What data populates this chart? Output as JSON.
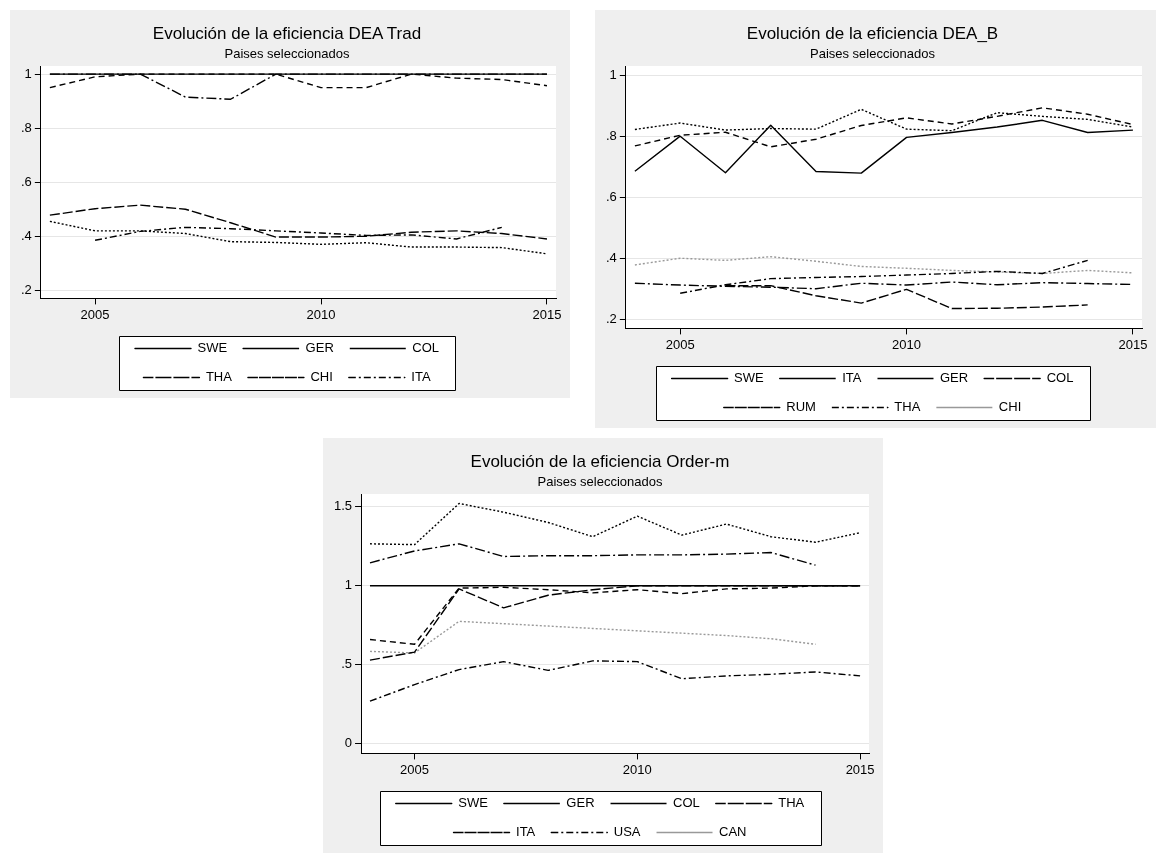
{
  "chart_data": [
    {
      "type": "line",
      "title": "Evolución de la eficiencia DEA Trad",
      "subtitle": "Paises seleccionados",
      "x": [
        2004,
        2005,
        2006,
        2007,
        2008,
        2009,
        2010,
        2011,
        2012,
        2013,
        2014,
        2015
      ],
      "xlim": [
        2003.8,
        2015.2
      ],
      "xticks": [
        2005,
        2010,
        2015
      ],
      "ylim": [
        0.17,
        1.03
      ],
      "yticks": [
        {
          "value": 0.2,
          "label": ".2"
        },
        {
          "value": 0.4,
          "label": ".4"
        },
        {
          "value": 0.6,
          "label": ".6"
        },
        {
          "value": 0.8,
          "label": ".8"
        },
        {
          "value": 1,
          "label": "1"
        }
      ],
      "grid": "y",
      "legend": "bottom",
      "series": [
        {
          "name": "SWE",
          "color": "#000000",
          "line_style": "solid",
          "values": [
            1,
            1,
            1,
            1,
            1,
            1,
            1,
            1,
            1,
            1,
            1,
            1
          ]
        },
        {
          "name": "GER",
          "color": "#000000",
          "line_style": "dashed",
          "values": [
            0.95,
            0.99,
            1,
            1,
            1,
            1,
            0.95,
            0.95,
            1,
            0.985,
            0.98,
            0.957
          ]
        },
        {
          "name": "COL",
          "color": "#000000",
          "line_style": "dotted",
          "values": [
            0.455,
            0.42,
            0.42,
            0.41,
            0.38,
            0.377,
            0.37,
            0.376,
            0.36,
            0.36,
            0.358,
            0.335
          ]
        },
        {
          "name": "THA",
          "color": "#000000",
          "line_style": "longdashdot",
          "values": [
            1,
            1,
            1,
            0.915,
            0.907,
            1,
            1,
            1,
            1,
            1,
            1,
            1
          ]
        },
        {
          "name": "CHI",
          "color": "#000000",
          "line_style": "longdash",
          "values": [
            0.478,
            0.502,
            0.515,
            0.5,
            0.45,
            0.397,
            0.397,
            0.4,
            0.415,
            0.42,
            0.41,
            0.39
          ]
        },
        {
          "name": "ITA",
          "color": "#000000",
          "line_style": "dashdot",
          "values": [
            null,
            0.385,
            0.418,
            0.433,
            0.428,
            0.42,
            0.412,
            0.403,
            0.405,
            0.39,
            0.433,
            null
          ]
        }
      ]
    },
    {
      "type": "line",
      "title": "Evolución de la eficiencia DEA_B",
      "subtitle": "Paises seleccionados",
      "x": [
        2004,
        2005,
        2006,
        2007,
        2008,
        2009,
        2010,
        2011,
        2012,
        2013,
        2014,
        2015
      ],
      "xlim": [
        2003.8,
        2015.2
      ],
      "xticks": [
        2005,
        2010,
        2015
      ],
      "ylim": [
        0.17,
        1.03
      ],
      "yticks": [
        {
          "value": 0.2,
          "label": ".2"
        },
        {
          "value": 0.4,
          "label": ".4"
        },
        {
          "value": 0.6,
          "label": ".6"
        },
        {
          "value": 0.8,
          "label": ".8"
        },
        {
          "value": 1,
          "label": "1"
        }
      ],
      "grid": "y",
      "legend": "bottom",
      "series": [
        {
          "name": "SWE",
          "color": "#000000",
          "line_style": "solid",
          "values": [
            0.685,
            0.8,
            0.68,
            0.836,
            0.684,
            0.679,
            0.796,
            0.812,
            0.83,
            0.852,
            0.812,
            0.82
          ]
        },
        {
          "name": "ITA",
          "color": "#000000",
          "line_style": "dashed",
          "values": [
            0.768,
            0.803,
            0.813,
            0.765,
            0.79,
            0.835,
            0.86,
            0.84,
            0.865,
            0.893,
            0.872,
            0.838
          ]
        },
        {
          "name": "GER",
          "color": "#000000",
          "line_style": "dotted",
          "values": [
            0.822,
            0.843,
            0.82,
            0.825,
            0.823,
            0.888,
            0.823,
            0.818,
            0.877,
            0.865,
            0.855,
            0.83
          ]
        },
        {
          "name": "COL",
          "color": "#000000",
          "line_style": "longdashdot",
          "values": [
            0.318,
            0.312,
            0.308,
            0.305,
            0.3,
            0.318,
            0.312,
            0.322,
            0.313,
            0.32,
            0.317,
            0.314
          ]
        },
        {
          "name": "RUM",
          "color": "#000000",
          "line_style": "longdash",
          "values": [
            null,
            null,
            0.31,
            0.31,
            0.277,
            0.253,
            0.298,
            0.235,
            0.236,
            0.24,
            0.247,
            null
          ]
        },
        {
          "name": "THA",
          "color": "#000000",
          "line_style": "dashdot",
          "values": [
            null,
            0.285,
            0.313,
            0.333,
            0.337,
            0.34,
            0.345,
            0.35,
            0.357,
            0.35,
            0.393,
            null
          ]
        },
        {
          "name": "CHI",
          "color": "#999999",
          "line_style": "dotted",
          "values": [
            0.378,
            0.4,
            0.393,
            0.405,
            0.39,
            0.373,
            0.367,
            0.36,
            0.355,
            0.35,
            0.36,
            0.352
          ]
        }
      ]
    },
    {
      "type": "line",
      "title": "Evolución de la eficiencia Order-m",
      "subtitle": "Paises seleccionados",
      "x": [
        2004,
        2005,
        2006,
        2007,
        2008,
        2009,
        2010,
        2011,
        2012,
        2013,
        2014,
        2015
      ],
      "xlim": [
        2003.8,
        2015.2
      ],
      "xticks": [
        2005,
        2010,
        2015
      ],
      "ylim": [
        -0.06,
        1.58
      ],
      "yticks": [
        {
          "value": 0,
          "label": "0"
        },
        {
          "value": 0.5,
          "label": ".5"
        },
        {
          "value": 1,
          "label": "1"
        },
        {
          "value": 1.5,
          "label": "1.5"
        }
      ],
      "grid": "y",
      "legend": "bottom",
      "series": [
        {
          "name": "SWE",
          "color": "#000000",
          "line_style": "solid",
          "values": [
            1,
            1,
            1,
            1,
            1,
            1,
            1,
            1,
            1,
            1,
            1,
            1
          ]
        },
        {
          "name": "GER",
          "color": "#000000",
          "line_style": "dashed",
          "values": [
            0.66,
            0.63,
            0.985,
            0.99,
            0.975,
            0.955,
            0.975,
            0.95,
            0.98,
            0.985,
            1,
            1
          ]
        },
        {
          "name": "COL",
          "color": "#000000",
          "line_style": "dotted",
          "values": [
            1.265,
            1.26,
            1.52,
            1.465,
            1.4,
            1.31,
            1.44,
            1.32,
            1.39,
            1.31,
            1.275,
            1.335
          ]
        },
        {
          "name": "THA",
          "color": "#000000",
          "line_style": "longdashdot",
          "values": [
            1.145,
            1.22,
            1.265,
            1.185,
            1.19,
            1.19,
            1.195,
            1.195,
            1.2,
            1.21,
            1.13,
            null
          ]
        },
        {
          "name": "ITA",
          "color": "#000000",
          "line_style": "longdash",
          "values": [
            0.53,
            0.58,
            0.98,
            0.86,
            0.94,
            0.975,
            1,
            1,
            1,
            1,
            1,
            1
          ]
        },
        {
          "name": "USA",
          "color": "#000000",
          "line_style": "dashdot",
          "values": [
            0.27,
            0.375,
            0.47,
            0.52,
            0.465,
            0.525,
            0.52,
            0.412,
            0.43,
            0.44,
            0.455,
            0.43
          ]
        },
        {
          "name": "CAN",
          "color": "#999999",
          "line_style": "dotted",
          "values": [
            0.585,
            0.575,
            0.775,
            0.76,
            0.745,
            0.73,
            0.715,
            0.7,
            0.685,
            0.665,
            0.63,
            null
          ]
        }
      ]
    }
  ]
}
